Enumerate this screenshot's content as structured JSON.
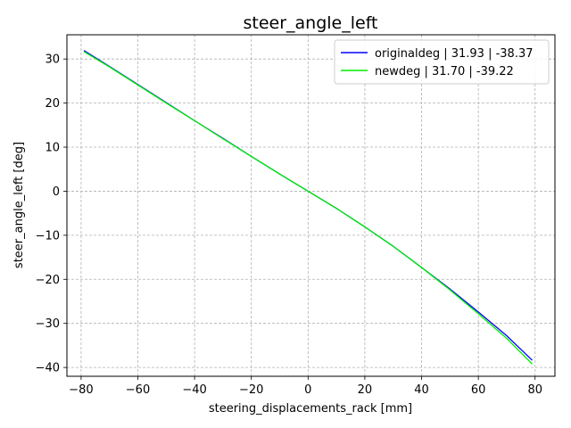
{
  "chart_data": {
    "type": "line",
    "title": "steer_angle_left",
    "xlabel": "steering_displacements_rack [mm]",
    "ylabel": "steer_angle_left [deg]",
    "xlim": [
      -85,
      87
    ],
    "ylim": [
      -42,
      35.5
    ],
    "xticks": [
      -80,
      -60,
      -40,
      -20,
      0,
      20,
      40,
      60,
      80
    ],
    "yticks": [
      -40,
      -30,
      -20,
      -10,
      0,
      10,
      20,
      30
    ],
    "xtick_labels": [
      "−80",
      "−60",
      "−40",
      "−20",
      "0",
      "20",
      "40",
      "60",
      "80"
    ],
    "ytick_labels": [
      "−40",
      "−30",
      "−20",
      "−10",
      "0",
      "10",
      "20",
      "30"
    ],
    "grid": true,
    "legend_position": "top-right",
    "series": [
      {
        "name": "originaldeg | 31.93 | -38.37",
        "color": "#0000ff",
        "x": [
          -79,
          -70,
          -60,
          -50,
          -40,
          -30,
          -20,
          -10,
          0,
          10,
          20,
          30,
          40,
          50,
          60,
          70,
          79
        ],
        "y": [
          31.93,
          28.3,
          24.2,
          20.1,
          16.0,
          12.0,
          7.9,
          3.9,
          0.0,
          -3.9,
          -8.1,
          -12.5,
          -17.3,
          -22.2,
          -27.4,
          -32.8,
          -38.37
        ]
      },
      {
        "name": "newdeg | 31.70 | -39.22",
        "color": "#00ee00",
        "x": [
          -79,
          -70,
          -60,
          -50,
          -40,
          -30,
          -20,
          -10,
          0,
          10,
          20,
          30,
          40,
          50,
          60,
          70,
          79
        ],
        "y": [
          31.7,
          28.2,
          24.1,
          20.0,
          16.0,
          11.9,
          7.9,
          3.9,
          0.0,
          -3.9,
          -8.1,
          -12.5,
          -17.3,
          -22.4,
          -27.8,
          -33.4,
          -39.22
        ]
      }
    ]
  }
}
